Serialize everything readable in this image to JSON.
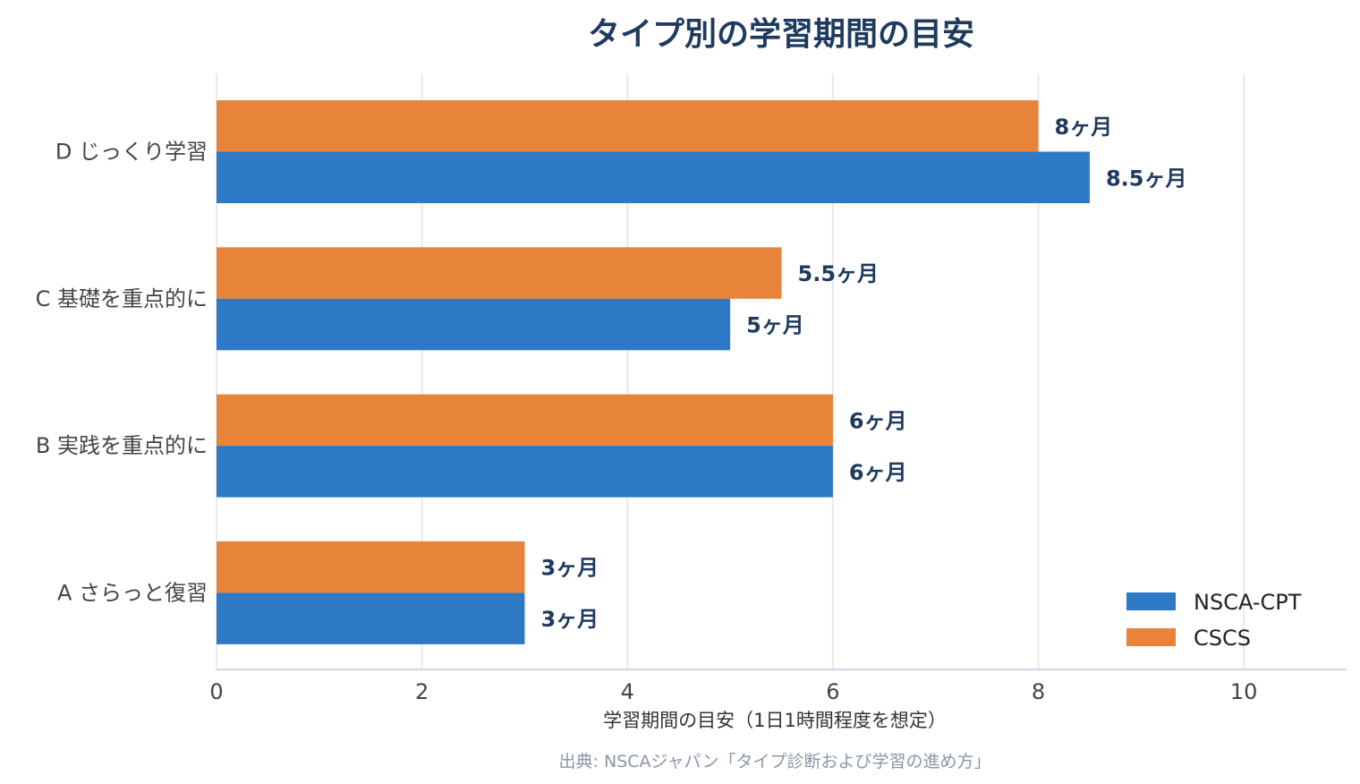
{
  "chart_data": {
    "type": "bar",
    "orientation": "horizontal",
    "title": "タイプ別の学習期間の目安",
    "categories": [
      "A さらっと復習",
      "B 実践を重点的に",
      "C 基礎を重点的に",
      "D じっくり学習"
    ],
    "series": [
      {
        "name": "NSCA-CPT",
        "color": "#2e79c5",
        "values": [
          3,
          6,
          5,
          8.5
        ],
        "labels": [
          "3ヶ月",
          "6ヶ月",
          "5ヶ月",
          "8.5ヶ月"
        ]
      },
      {
        "name": "CSCS",
        "color": "#e8843a",
        "values": [
          3,
          6,
          5.5,
          8
        ],
        "labels": [
          "3ヶ月",
          "6ヶ月",
          "5.5ヶ月",
          "8ヶ月"
        ]
      }
    ],
    "xlabel": "学習期間の目安（1日1時間程度を想定）",
    "x_ticks": [
      "0",
      "2",
      "4",
      "6",
      "8",
      "10"
    ],
    "xlim": [
      0,
      11
    ],
    "grid": true,
    "legend_position": "bottom-right",
    "source": "出典: NSCAジャパン「タイプ診断および学習の進め方」"
  }
}
